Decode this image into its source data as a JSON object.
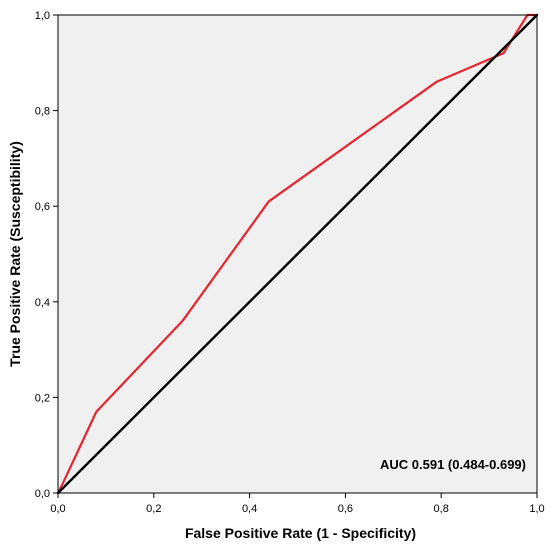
{
  "chart_data": {
    "type": "line",
    "title": "",
    "xlabel": "False Positive Rate (1 - Specificity)",
    "ylabel": "True Positive Rate (Susceptibility)",
    "xlim": [
      0,
      1
    ],
    "ylim": [
      0,
      1
    ],
    "x_ticks": [
      0,
      0.2,
      0.4,
      0.6,
      0.8,
      1.0
    ],
    "y_ticks": [
      0,
      0.2,
      0.4,
      0.6,
      0.8,
      1.0
    ],
    "x_tick_labels": [
      "0,0",
      "0,2",
      "0,4",
      "0,6",
      "0,8",
      "1,0"
    ],
    "y_tick_labels": [
      "0,0",
      "0,2",
      "0,4",
      "0,6",
      "0,8",
      "1,0"
    ],
    "grid": false,
    "background": "#f0f0f0",
    "annotation": "AUC 0.591 (0.484-0.699)",
    "series": [
      {
        "color": "#e8242c",
        "x": [
          0,
          0.01,
          0.08,
          0.26,
          0.44,
          0.72,
          0.79,
          0.93,
          0.98,
          1.0
        ],
        "y": [
          0,
          0.02,
          0.17,
          0.36,
          0.61,
          0.81,
          0.86,
          0.92,
          1.0,
          1.0
        ]
      },
      {
        "color": "#000000",
        "x": [
          0,
          1
        ],
        "y": [
          0,
          1
        ]
      }
    ]
  }
}
